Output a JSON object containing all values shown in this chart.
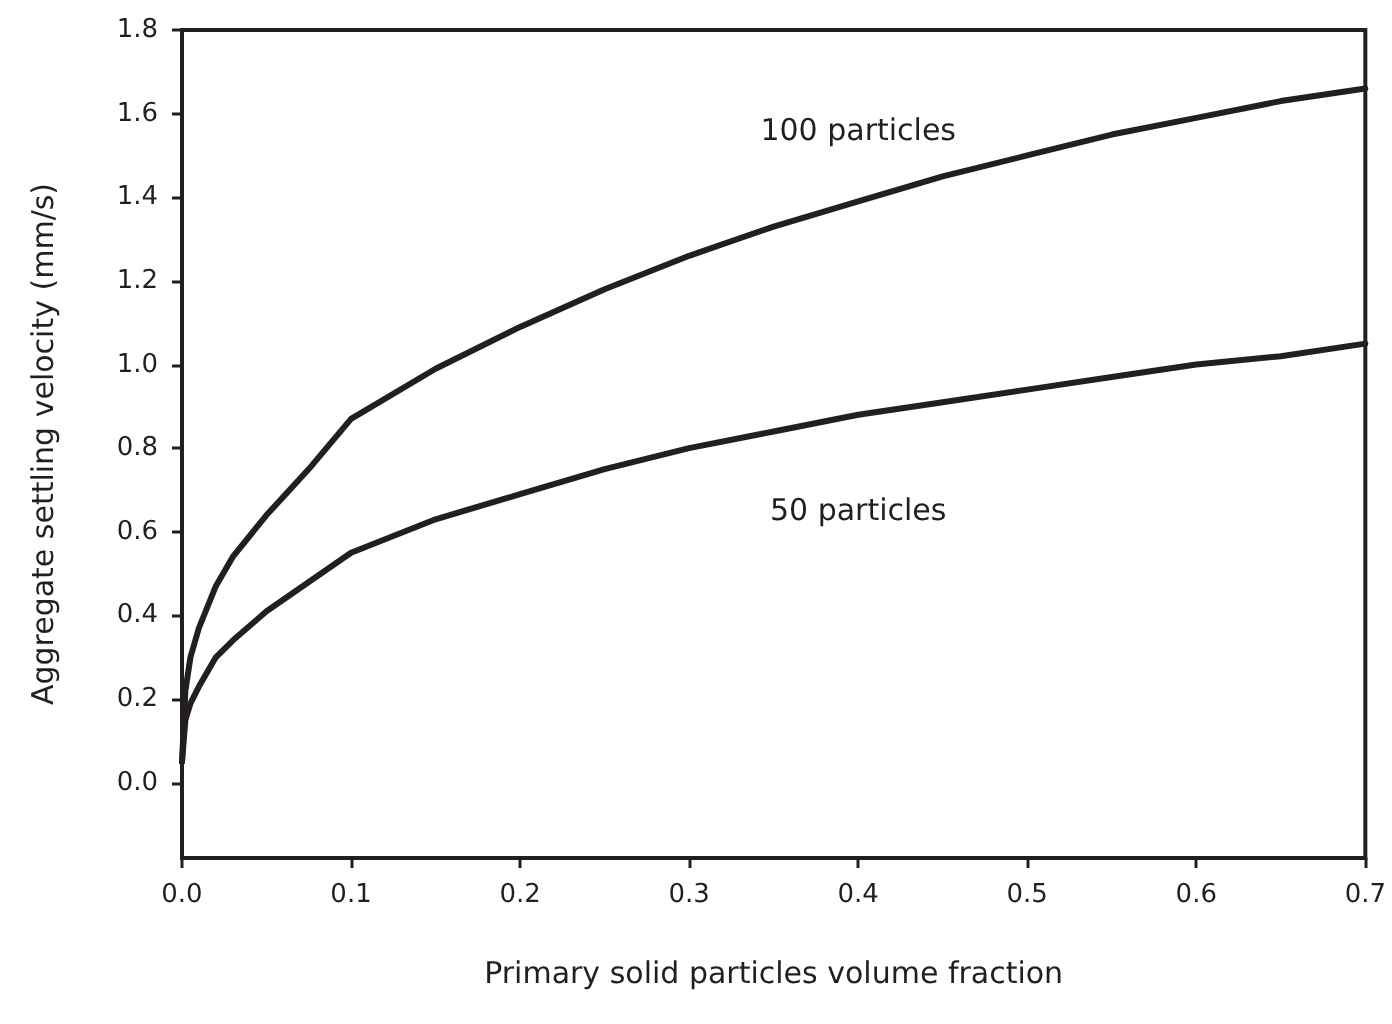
{
  "chart_data": {
    "type": "line",
    "xlabel": "Primary solid particles volume fraction",
    "ylabel": "Aggregate settling velocity (mm/s)",
    "x": [
      0,
      0.002,
      0.005,
      0.01,
      0.02,
      0.03,
      0.05,
      0.075,
      0.1,
      0.15,
      0.2,
      0.25,
      0.3,
      0.35,
      0.4,
      0.45,
      0.5,
      0.55,
      0.6,
      0.65,
      0.7
    ],
    "series": [
      {
        "name": "100 particles",
        "color": "#231f20",
        "values": [
          0.05,
          0.22,
          0.3,
          0.37,
          0.47,
          0.54,
          0.64,
          0.75,
          0.87,
          0.99,
          1.09,
          1.18,
          1.26,
          1.33,
          1.39,
          1.45,
          1.5,
          1.55,
          1.59,
          1.63,
          1.66
        ]
      },
      {
        "name": "50 particles",
        "color": "#231f20",
        "values": [
          0.05,
          0.15,
          0.19,
          0.23,
          0.3,
          0.34,
          0.41,
          0.48,
          0.55,
          0.63,
          0.69,
          0.75,
          0.8,
          0.84,
          0.88,
          0.91,
          0.94,
          0.97,
          1.0,
          1.02,
          1.05
        ]
      }
    ],
    "xlim": [
      0,
      0.7
    ],
    "xticks": [
      {
        "value": 0,
        "label": "0.0"
      },
      0.1,
      0.2,
      0.3,
      0.4,
      0.5,
      0.6,
      0.7
    ],
    "ylim": [
      -0.18,
      1.8
    ],
    "yticks": [
      {
        "value": 0,
        "label": "0.0"
      },
      0.2,
      0.4,
      0.6,
      0.8,
      {
        "value": 1,
        "label": "1.0"
      },
      1.2,
      1.4,
      1.6,
      1.8
    ],
    "grid": false,
    "marker": "none",
    "line_style": "solid"
  }
}
